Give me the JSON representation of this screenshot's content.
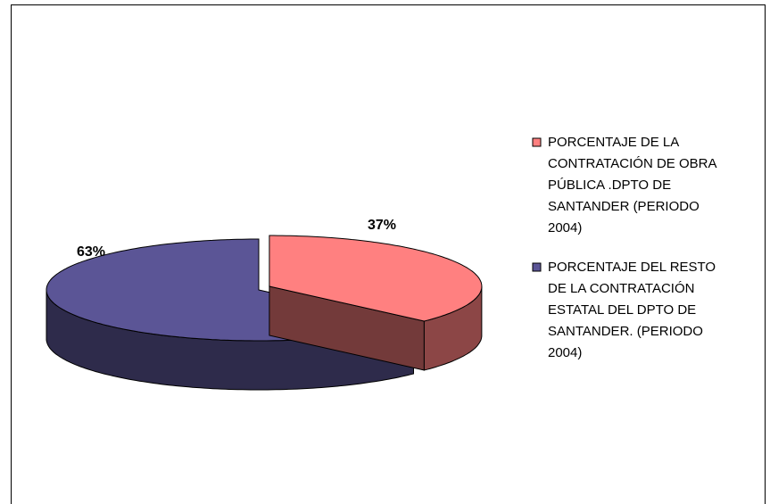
{
  "chart_data": {
    "type": "pie3d",
    "series": [
      {
        "name": "PORCENTAJE DE LA CONTRATACIÓN DE OBRA PÚBLICA .DPTO DE SANTANDER (PERIODO 2004)",
        "color": "#ff8080",
        "values": [
          37
        ],
        "value_labels": [
          "37%"
        ]
      },
      {
        "name": "PORCENTAJE DEL RESTO DE LA CONTRATACIÓN ESTATAL DEL DPTO DE SANTANDER. (PERIODO 2004)",
        "color": "#5b5596",
        "values": [
          63
        ],
        "value_labels": [
          "63%"
        ]
      }
    ],
    "legend": "right"
  }
}
